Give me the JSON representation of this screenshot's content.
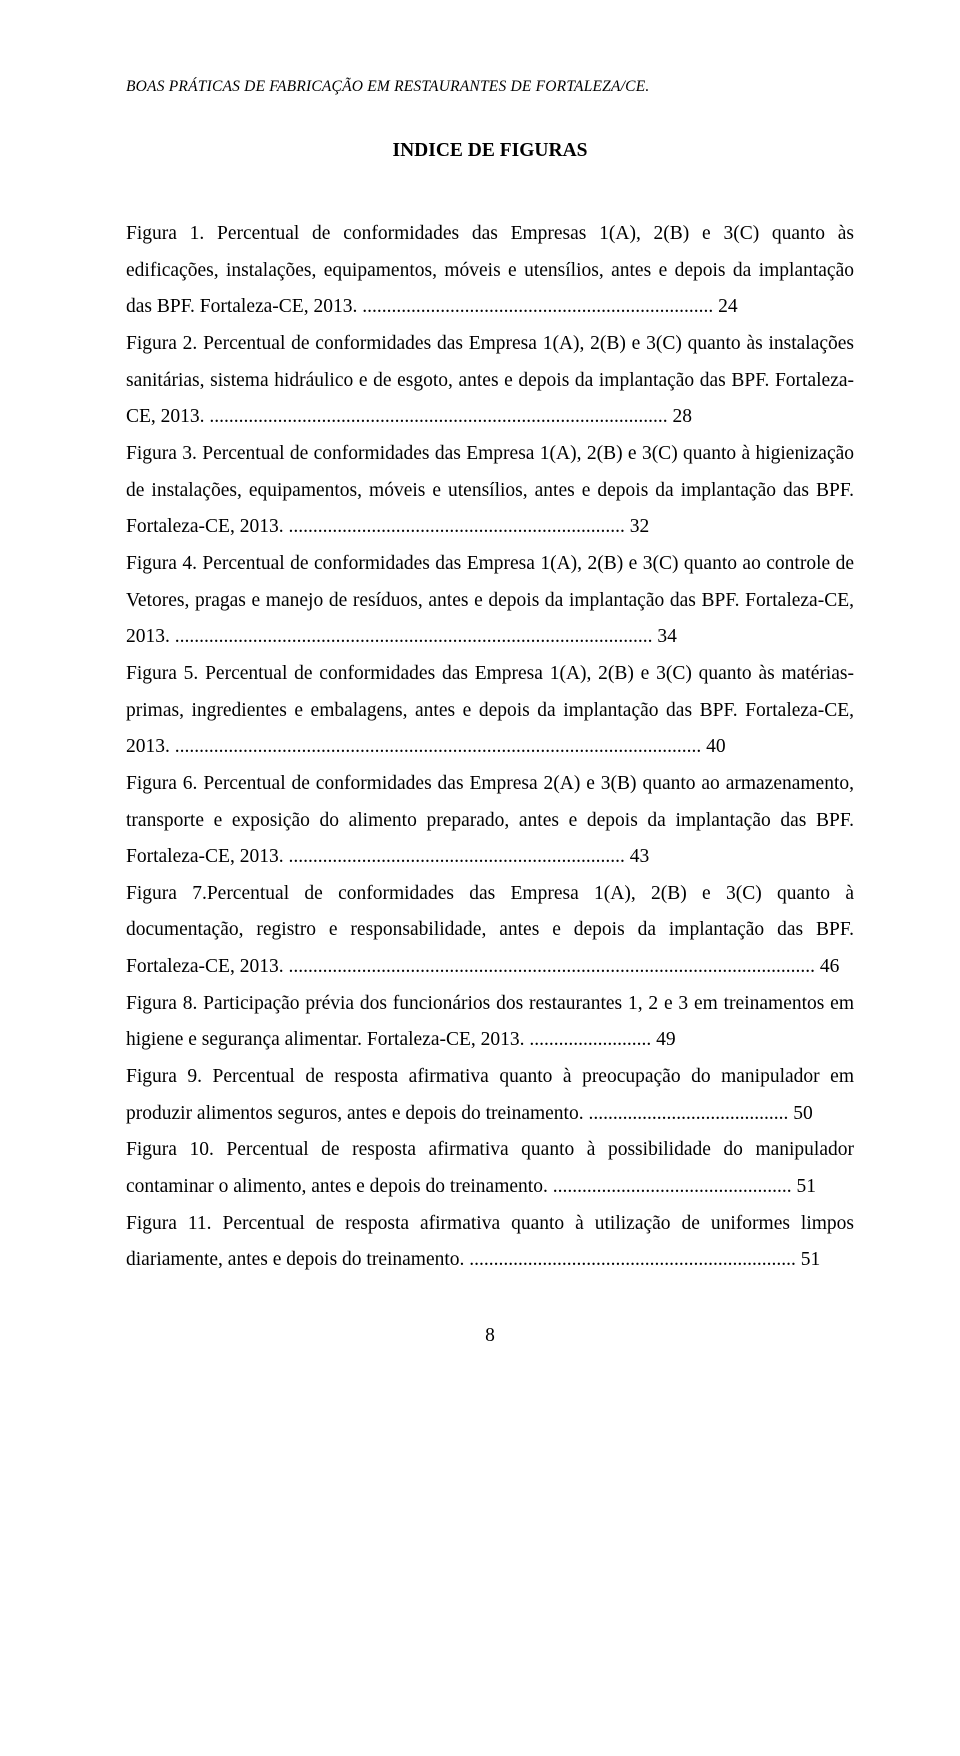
{
  "running_head": "BOAS PRÁTICAS DE FABRICAÇÃO EM RESTAURANTES DE FORTALEZA/CE.",
  "section_title": "INDICE DE FIGURAS",
  "entries": [
    {
      "text": "Figura 1. Percentual de conformidades das Empresas 1(A), 2(B) e 3(C) quanto às edificações, instalações, equipamentos, móveis e utensílios, antes e depois da implantação das BPF. Fortaleza-CE, 2013. ........................................................................ 24"
    },
    {
      "text": "Figura 2. Percentual de conformidades das Empresa 1(A), 2(B) e 3(C) quanto às instalações sanitárias, sistema hidráulico e de esgoto, antes e depois da implantação das BPF. Fortaleza-CE, 2013. .............................................................................................. 28"
    },
    {
      "text": "Figura 3. Percentual de conformidades das Empresa 1(A), 2(B) e 3(C) quanto à higienização de instalações, equipamentos, móveis e utensílios, antes e depois da implantação das BPF. Fortaleza-CE, 2013. ..................................................................... 32"
    },
    {
      "text": "Figura 4. Percentual de conformidades das Empresa 1(A), 2(B) e 3(C) quanto ao controle de Vetores, pragas e manejo de resíduos, antes e depois da implantação das BPF. Fortaleza-CE, 2013. .................................................................................................. 34"
    },
    {
      "text": "Figura 5. Percentual de conformidades das Empresa 1(A), 2(B) e 3(C) quanto às matérias-primas, ingredientes e embalagens, antes e depois da implantação das BPF. Fortaleza-CE, 2013. ............................................................................................................ 40"
    },
    {
      "text": "Figura 6. Percentual de conformidades das Empresa 2(A) e 3(B) quanto ao armazenamento, transporte e exposição do alimento preparado, antes e depois da implantação das BPF. Fortaleza-CE, 2013. ..................................................................... 43"
    },
    {
      "text": "Figura 7.Percentual de conformidades das Empresa 1(A), 2(B) e 3(C) quanto à documentação, registro e responsabilidade, antes e depois da implantação das BPF. Fortaleza-CE, 2013. ............................................................................................................ 46"
    },
    {
      "text": "Figura 8. Participação prévia dos funcionários dos restaurantes 1, 2 e 3 em treinamentos em higiene e segurança alimentar. Fortaleza-CE, 2013. ......................... 49"
    },
    {
      "text": "Figura 9. Percentual de resposta afirmativa quanto à preocupação do manipulador em produzir alimentos seguros, antes e depois do treinamento. ......................................... 50"
    },
    {
      "text": "Figura 10. Percentual de resposta afirmativa quanto à possibilidade do manipulador contaminar o alimento, antes e depois do treinamento. ................................................. 51"
    },
    {
      "text": "Figura 11. Percentual de resposta afirmativa quanto à utilização de uniformes limpos diariamente, antes e depois do treinamento. ................................................................... 51"
    }
  ],
  "page_number": "8"
}
